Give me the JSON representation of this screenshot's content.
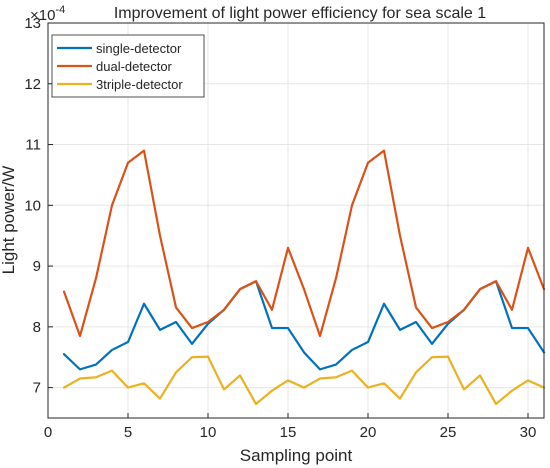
{
  "chart_data": {
    "type": "line",
    "title": "Improvement of light power efficiency for sea scale 1",
    "xlabel": "Sampling point",
    "ylabel": "Light power/W",
    "y_multiplier_label": "×10",
    "y_multiplier_exponent": "-4",
    "xlim": [
      0,
      31
    ],
    "ylim": [
      6.5,
      13
    ],
    "x_ticks": [
      0,
      5,
      10,
      15,
      20,
      25,
      30
    ],
    "y_ticks": [
      7,
      8,
      9,
      10,
      11,
      12,
      13
    ],
    "x_tick_labels": [
      "0",
      "5",
      "10",
      "15",
      "20",
      "25",
      "30"
    ],
    "y_tick_labels": [
      "7",
      "8",
      "9",
      "10",
      "11",
      "12",
      "13"
    ],
    "grid": true,
    "legend_position": "top-left",
    "x": [
      1,
      2,
      3,
      4,
      5,
      6,
      7,
      8,
      9,
      10,
      11,
      12,
      13,
      14,
      15,
      16,
      17,
      18,
      19,
      20,
      21,
      22,
      23,
      24,
      25,
      26,
      27,
      28,
      29,
      30,
      31
    ],
    "series": [
      {
        "name": "single-detector",
        "color": "#0072bd",
        "values": [
          7.55,
          7.3,
          7.38,
          7.62,
          7.75,
          8.38,
          7.95,
          8.08,
          7.72,
          8.05,
          8.28,
          8.62,
          8.75,
          7.98,
          7.98,
          7.58,
          7.3,
          7.38,
          7.62,
          7.75,
          8.38,
          7.95,
          8.08,
          7.72,
          8.05,
          8.28,
          8.62,
          8.75,
          7.98,
          7.98,
          7.58
        ]
      },
      {
        "name": "dual-detector",
        "color": "#d95319",
        "values": [
          8.58,
          7.85,
          8.8,
          10.0,
          10.7,
          10.9,
          9.5,
          8.32,
          7.98,
          8.08,
          8.28,
          8.62,
          8.75,
          8.28,
          9.3,
          8.62,
          7.85,
          8.8,
          10.0,
          10.7,
          10.9,
          9.5,
          8.32,
          7.98,
          8.08,
          8.28,
          8.62,
          8.75,
          8.28,
          9.3,
          8.62
        ]
      },
      {
        "name": "3triple-detector",
        "color": "#edb120",
        "values": [
          7.0,
          7.15,
          7.17,
          7.28,
          7.0,
          7.07,
          6.82,
          7.25,
          7.5,
          7.51,
          6.97,
          7.2,
          6.73,
          6.95,
          7.12,
          7.0,
          7.15,
          7.17,
          7.28,
          7.0,
          7.07,
          6.82,
          7.25,
          7.5,
          7.51,
          6.97,
          7.2,
          6.73,
          6.95,
          7.12,
          7.0
        ]
      }
    ]
  }
}
